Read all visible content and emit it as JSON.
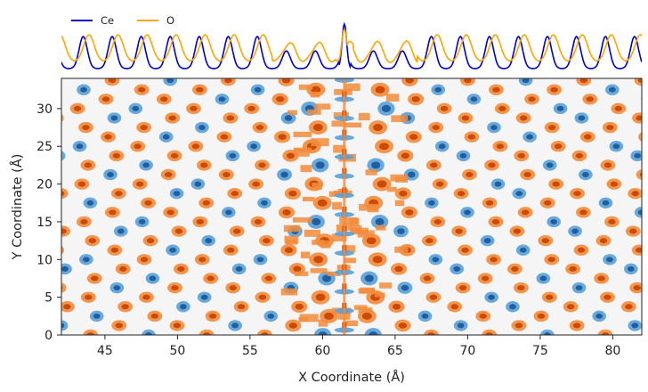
{
  "chart_data": {
    "type": "heatmap",
    "title": "",
    "xlabel": "X Coordinate (Å)",
    "ylabel": "Y Coordinate (Å)",
    "xlim": [
      42,
      82
    ],
    "ylim": [
      0,
      34
    ],
    "x_ticks": [
      "45",
      "50",
      "55",
      "60",
      "65",
      "70",
      "75",
      "80"
    ],
    "y_ticks": [
      "0",
      "5",
      "10",
      "15",
      "20",
      "25",
      "30"
    ],
    "grid": false,
    "legend": {
      "placement": "top-left",
      "entries": [
        {
          "name": "Ce",
          "color": "#0000cd"
        },
        {
          "name": "O",
          "color": "#ffa500"
        }
      ]
    },
    "series": [
      {
        "name": "Ce",
        "color": "#0000cd",
        "pattern": "periodic peaks, spacing ~2.0 Å, strong peak at x=61.5"
      },
      {
        "name": "O",
        "color": "#ffa500",
        "pattern": "periodic peaks, disordered region x=57–66"
      }
    ],
    "density_map": {
      "colors": {
        "background": "#f5f5f5",
        "ce_core": "#1f5fa0",
        "ce_halo": "#5aa0d8",
        "o_core": "#cc4a06",
        "o_halo": "#f28c3c"
      },
      "boundary_x": 61.5,
      "column_spacing": 2.0,
      "row_spacing": 2.5
    }
  }
}
